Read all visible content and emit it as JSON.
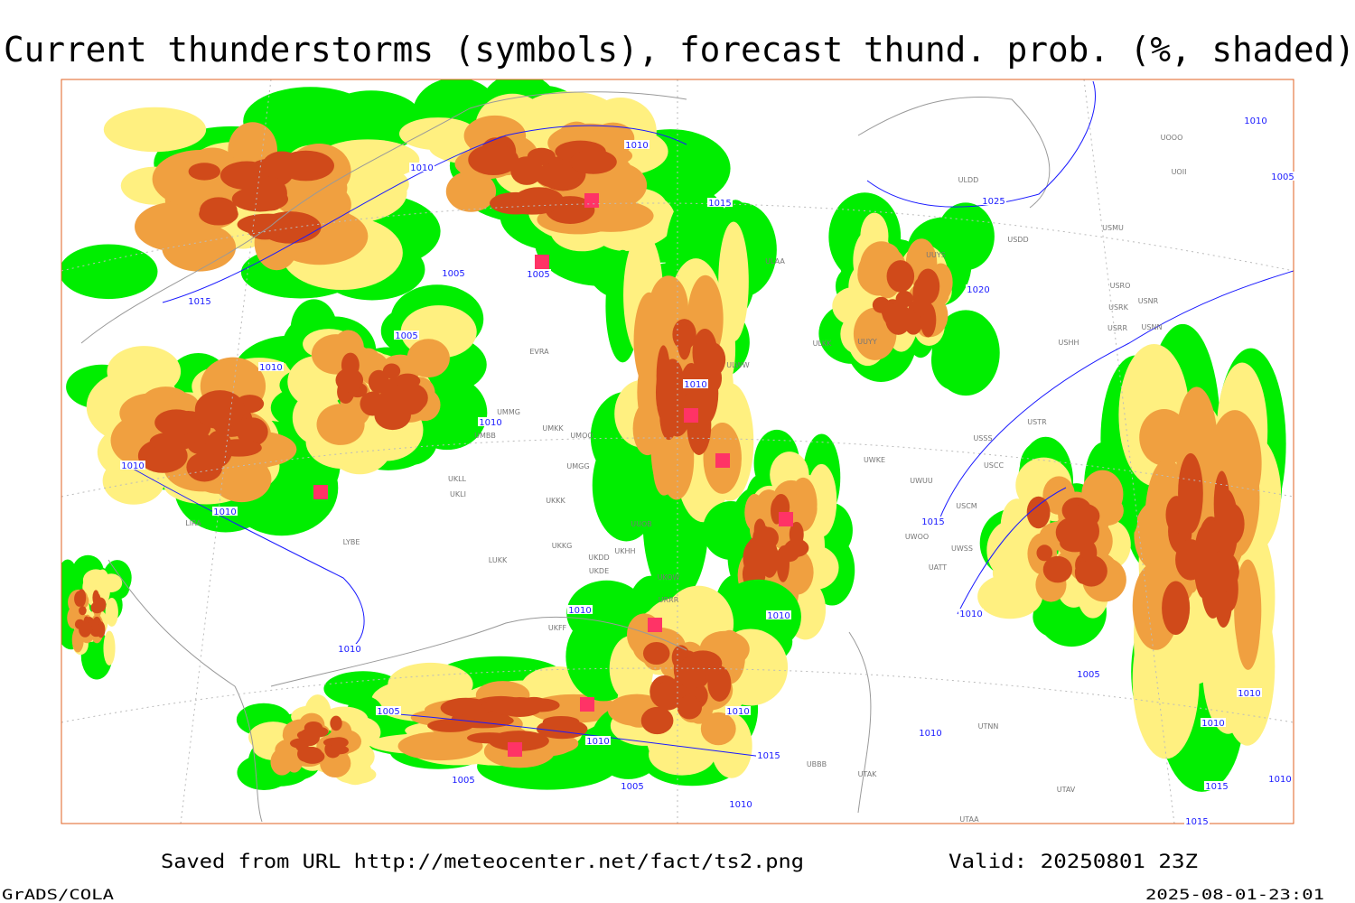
{
  "title": "Current thunderstorms (symbols), forecast thund. prob. (%, shaded)",
  "footer": {
    "saved": "Saved from URL http://meteocenter.net/fact/ts2.png",
    "valid": "Valid: 20250801 23Z",
    "credit": "GrADS/COLA",
    "timestamp": "2025-08-01-23:01"
  },
  "isobar_labels": [
    "1010",
    "1010",
    "1015",
    "1025",
    "1020",
    "1005",
    "1005",
    "1015",
    "1005",
    "1010",
    "1010",
    "1010",
    "1010",
    "1010",
    "1015",
    "1010",
    "1010",
    "1010",
    "1010",
    "1005",
    "1010",
    "1010",
    "1005",
    "1010",
    "1010",
    "1010",
    "1015",
    "1005",
    "1005",
    "1010",
    "1015",
    "1010",
    "1015",
    "1010",
    "1005"
  ],
  "stations": [
    "ULDD",
    "USDD",
    "USMU",
    "UUYS",
    "ULAA",
    "USRO",
    "USRK",
    "USNR",
    "USRR",
    "USNN",
    "USHH",
    "UUYY",
    "ULKK",
    "ULWW",
    "UOOO",
    "UOII",
    "USTR",
    "USSS",
    "USCC",
    "UWKE",
    "UWUU",
    "USCM",
    "UWOO",
    "UWSS",
    "UATT",
    "UTNN",
    "UTAK",
    "UBBB",
    "UTAV",
    "UTAA",
    "UMMG",
    "UMBB",
    "UMGG",
    "UKKK",
    "UUOB",
    "UKHH",
    "UKKG",
    "UKDD",
    "UKDE",
    "UKOW",
    "URRR",
    "UKFF",
    "LIRA",
    "LYBE",
    "LUKK",
    "EVRA",
    "UMKK",
    "UMOO",
    "UKLL",
    "UKLI"
  ]
}
